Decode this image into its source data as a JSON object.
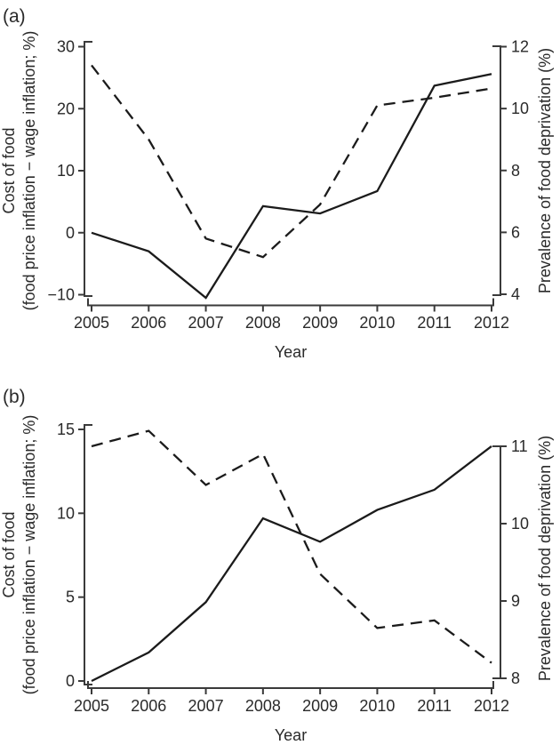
{
  "page": {
    "background": "#ffffff"
  },
  "colors": {
    "ink": "#2a2a2a",
    "line": "#1b1b1b",
    "axis": "#3a3a3a"
  },
  "chart_data": [
    {
      "panel_label": "(a)",
      "type": "line",
      "x": [
        2005,
        2006,
        2007,
        2008,
        2009,
        2010,
        2011,
        2012
      ],
      "x_tick_labels": [
        "2005",
        "2006",
        "2007",
        "2008",
        "2009",
        "2010",
        "2011",
        "2012"
      ],
      "xlabel": "Year",
      "grid": false,
      "legend": "none",
      "left_axis": {
        "title_line1": "Cost of food",
        "title_line2": "(food price inflation − wage inflation; %)",
        "range": [
          -10,
          30
        ],
        "ticks": [
          -10,
          0,
          10,
          20,
          30
        ],
        "tick_labels": [
          "−10",
          "0",
          "10",
          "20",
          "30"
        ]
      },
      "right_axis": {
        "title": "Prevalence of food deprivation (%)",
        "range": [
          4,
          12
        ],
        "ticks": [
          4,
          6,
          8,
          10,
          12
        ],
        "tick_labels": [
          "4",
          "6",
          "8",
          "10",
          "12"
        ]
      },
      "series": [
        {
          "name": "cost-of-food",
          "axis": "left",
          "line_style": "solid",
          "values": [
            0,
            -3,
            -10.5,
            4.3,
            3.1,
            6.7,
            23.7,
            25.6
          ]
        },
        {
          "name": "prevalence-of-food-deprivation",
          "axis": "right",
          "line_style": "dashed",
          "values": [
            11.4,
            9.0,
            5.8,
            5.2,
            6.9,
            10.1,
            10.35,
            10.65
          ]
        }
      ]
    },
    {
      "panel_label": "(b)",
      "type": "line",
      "x": [
        2005,
        2006,
        2007,
        2008,
        2009,
        2010,
        2011,
        2012
      ],
      "x_tick_labels": [
        "2005",
        "2006",
        "2007",
        "2008",
        "2009",
        "2010",
        "2011",
        "2012"
      ],
      "xlabel": "Year",
      "grid": false,
      "legend": "none",
      "left_axis": {
        "title_line1": "Cost of food",
        "title_line2": "(food price inflation − wage inflation; %)",
        "range": [
          0,
          15
        ],
        "ticks": [
          0,
          5,
          10,
          15
        ],
        "tick_labels": [
          "0",
          "5",
          "10",
          "15"
        ]
      },
      "right_axis": {
        "title": "Prevalence of food deprivation (%)",
        "range": [
          8,
          11
        ],
        "ticks": [
          8,
          9,
          10,
          11
        ],
        "tick_labels": [
          "8",
          "9",
          "10",
          "11"
        ]
      },
      "series": [
        {
          "name": "cost-of-food",
          "axis": "left",
          "line_style": "solid",
          "values": [
            0,
            1.7,
            4.7,
            9.7,
            8.3,
            10.2,
            11.4,
            14.0
          ]
        },
        {
          "name": "prevalence-of-food-deprivation",
          "axis": "right",
          "line_style": "dashed",
          "values": [
            11.0,
            11.2,
            10.5,
            10.9,
            9.35,
            8.65,
            8.75,
            8.2
          ]
        }
      ]
    }
  ]
}
